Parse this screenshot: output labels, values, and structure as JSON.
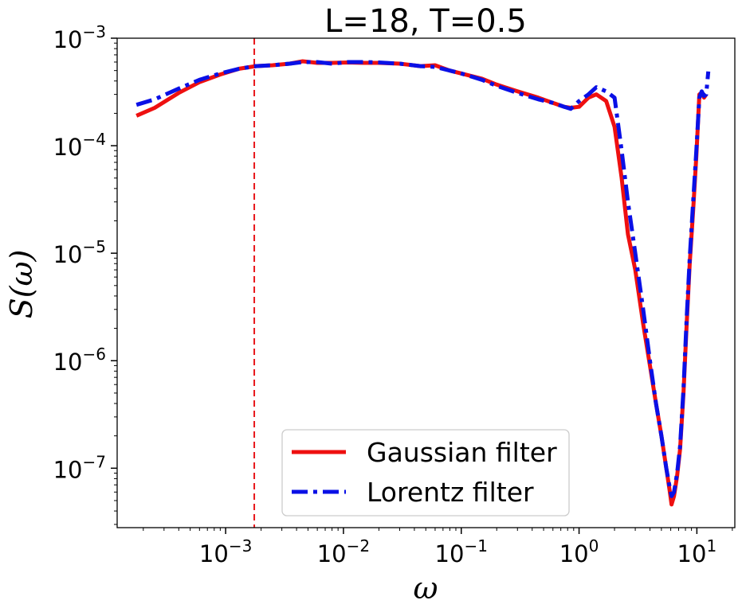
{
  "chart_data": {
    "type": "line",
    "title": "L=18, T=0.5",
    "xlabel": "ω",
    "ylabel": "S(ω)",
    "xscale": "log",
    "yscale": "log",
    "xlim": [
      0.00012,
      21
    ],
    "ylim": [
      2.8e-08,
      0.001
    ],
    "x_ticks": [
      {
        "value": 0.001,
        "base": "10",
        "exp": "−3"
      },
      {
        "value": 0.01,
        "base": "10",
        "exp": "−2"
      },
      {
        "value": 0.1,
        "base": "10",
        "exp": "−1"
      },
      {
        "value": 1,
        "base": "10",
        "exp": "0"
      },
      {
        "value": 10,
        "base": "10",
        "exp": "1"
      }
    ],
    "y_ticks": [
      {
        "value": 0.001,
        "base": "10",
        "exp": "−3"
      },
      {
        "value": 0.0001,
        "base": "10",
        "exp": "−4"
      },
      {
        "value": 1e-05,
        "base": "10",
        "exp": "−5"
      },
      {
        "value": 1e-06,
        "base": "10",
        "exp": "−6"
      },
      {
        "value": 1e-07,
        "base": "10",
        "exp": "−7"
      }
    ],
    "vline": {
      "x": 0.00175,
      "color": "#e8171b",
      "style": "dashed"
    },
    "legend_position": "bottom-center",
    "grid": false,
    "series": [
      {
        "name": "Gaussian filter",
        "color": "#ee1010",
        "style": "solid",
        "x": [
          0.000175,
          0.00025,
          0.0004,
          0.0006,
          0.0009,
          0.0013,
          0.0018,
          0.0025,
          0.0035,
          0.0045,
          0.006,
          0.008,
          0.011,
          0.015,
          0.02,
          0.03,
          0.045,
          0.06,
          0.08,
          0.1,
          0.15,
          0.2,
          0.3,
          0.45,
          0.6,
          0.75,
          0.85,
          1.0,
          1.2,
          1.4,
          1.7,
          2.0,
          2.3,
          2.6,
          3.0,
          3.5,
          4.0,
          4.5,
          5.0,
          5.5,
          5.9,
          6.1,
          6.4,
          6.8,
          7.2,
          7.7,
          8.2,
          8.7,
          9.3,
          9.9,
          10.5,
          11.0,
          11.5,
          12.0
        ],
        "y": [
          0.00019,
          0.000225,
          0.00031,
          0.00039,
          0.00046,
          0.00052,
          0.00055,
          0.00056,
          0.00058,
          0.00061,
          0.00059,
          0.00059,
          0.000595,
          0.00059,
          0.00059,
          0.00058,
          0.00055,
          0.00056,
          0.0005,
          0.00047,
          0.00042,
          0.00037,
          0.00032,
          0.00028,
          0.00025,
          0.00023,
          0.000225,
          0.00023,
          0.00028,
          0.0003,
          0.00026,
          0.00015,
          5e-05,
          1.5e-05,
          7e-06,
          2.2e-06,
          9e-07,
          4e-07,
          2e-07,
          1e-07,
          6e-08,
          4.6e-08,
          5.5e-08,
          8.5e-08,
          1.5e-07,
          5e-07,
          2.2e-06,
          8e-06,
          2.5e-05,
          8e-05,
          0.0003,
          0.00031,
          0.00028,
          0.0003
        ]
      },
      {
        "name": "Lorentz filter",
        "color": "#0a10e6",
        "style": "dashdot",
        "x": [
          0.000175,
          0.00025,
          0.0004,
          0.0006,
          0.0009,
          0.0013,
          0.0018,
          0.0025,
          0.0035,
          0.0045,
          0.006,
          0.008,
          0.011,
          0.015,
          0.02,
          0.03,
          0.045,
          0.06,
          0.08,
          0.1,
          0.15,
          0.2,
          0.3,
          0.45,
          0.6,
          0.75,
          0.85,
          1.0,
          1.2,
          1.4,
          1.7,
          2.0,
          2.3,
          2.6,
          3.0,
          3.5,
          4.0,
          4.5,
          5.0,
          5.5,
          5.9,
          6.1,
          6.4,
          6.8,
          7.2,
          7.7,
          8.2,
          8.7,
          9.3,
          9.9,
          10.5,
          11.0,
          11.5,
          12.0,
          12.5
        ],
        "y": [
          0.00024,
          0.00027,
          0.00034,
          0.00041,
          0.00047,
          0.00052,
          0.00055,
          0.00056,
          0.00058,
          0.0006,
          0.0006,
          0.00058,
          0.0006,
          0.0006,
          0.000595,
          0.00058,
          0.00055,
          0.00054,
          0.0005,
          0.00047,
          0.00041,
          0.00036,
          0.00031,
          0.00027,
          0.00025,
          0.00023,
          0.00022,
          0.00026,
          0.0003,
          0.00035,
          0.00032,
          0.00028,
          9e-05,
          3e-05,
          1e-05,
          3e-06,
          1e-06,
          4e-07,
          2e-07,
          1e-07,
          6.5e-08,
          5.5e-08,
          6e-08,
          9e-08,
          1.6e-07,
          5.5e-07,
          2.5e-06,
          9e-06,
          3e-05,
          9e-05,
          0.00028,
          0.00032,
          0.00029,
          0.0003,
          0.00049
        ]
      }
    ]
  }
}
